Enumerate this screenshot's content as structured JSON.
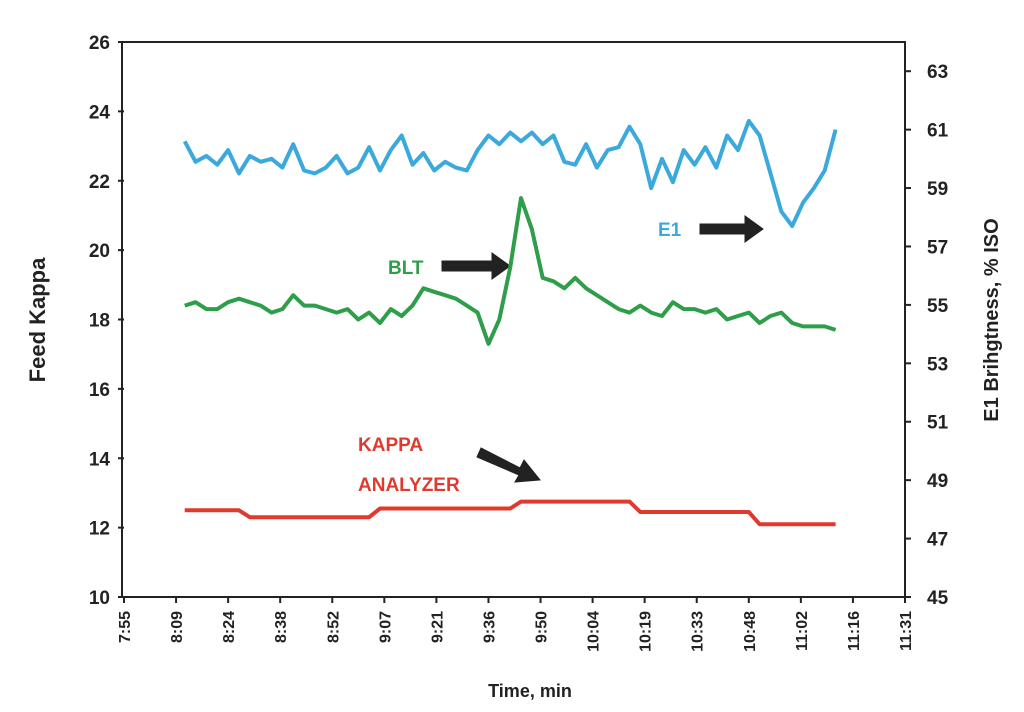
{
  "chart_data": {
    "type": "line",
    "x_label": "Time, min",
    "y_label": "Feed Kappa",
    "y2_label": "E1 Brihgtness, % ISO",
    "xlim": [
      475.2,
      691.2
    ],
    "xticks": [
      {
        "value": 475.2,
        "label": "7:55"
      },
      {
        "value": 489.6,
        "label": "8:09"
      },
      {
        "value": 504,
        "label": "8:24"
      },
      {
        "value": 518.4,
        "label": "8:38"
      },
      {
        "value": 532.8,
        "label": "8:52"
      },
      {
        "value": 547.2,
        "label": "9:07"
      },
      {
        "value": 561.6,
        "label": "9:21"
      },
      {
        "value": 576,
        "label": "9:36"
      },
      {
        "value": 590.4,
        "label": "9:50"
      },
      {
        "value": 604.8,
        "label": "10:04"
      },
      {
        "value": 619.2,
        "label": "10:19"
      },
      {
        "value": 633.6,
        "label": "10:33"
      },
      {
        "value": 648,
        "label": "10:48"
      },
      {
        "value": 662.4,
        "label": "11:02"
      },
      {
        "value": 676.8,
        "label": "11:16"
      },
      {
        "value": 691.2,
        "label": "11:31"
      }
    ],
    "ylim": [
      10,
      26
    ],
    "yticks": [
      10,
      12,
      14,
      16,
      18,
      20,
      22,
      24,
      26
    ],
    "y2lim": [
      45,
      64
    ],
    "y2ticks": [
      45,
      47,
      49,
      51,
      53,
      55,
      57,
      59,
      61,
      63
    ],
    "x": [
      492,
      495,
      498,
      501,
      504,
      507,
      510,
      513,
      516,
      519,
      522,
      525,
      528,
      531,
      534,
      537,
      540,
      543,
      546,
      549,
      552,
      555,
      558,
      561,
      564,
      567,
      570,
      573,
      576,
      579,
      582,
      585,
      588,
      591,
      594,
      597,
      600,
      603,
      606,
      609,
      612,
      615,
      618,
      621,
      624,
      627,
      630,
      633,
      636,
      639,
      642,
      645,
      648,
      651,
      654,
      657,
      660,
      663,
      666,
      669,
      672
    ],
    "series": [
      {
        "color": "#3ba9dc",
        "axis": "y2",
        "values": [
          60.6,
          59.9,
          60.1,
          59.8,
          60.3,
          59.5,
          60.1,
          59.9,
          60.0,
          59.7,
          60.5,
          59.6,
          59.5,
          59.7,
          60.1,
          59.5,
          59.7,
          60.4,
          59.6,
          60.3,
          60.8,
          59.8,
          60.2,
          59.6,
          59.9,
          59.7,
          59.6,
          60.3,
          60.8,
          60.5,
          60.9,
          60.6,
          60.9,
          60.5,
          60.8,
          59.9,
          59.8,
          60.5,
          59.7,
          60.3,
          60.4,
          61.1,
          60.5,
          59.0,
          60.0,
          59.2,
          60.3,
          59.8,
          60.4,
          59.7,
          60.8,
          60.3,
          61.3,
          60.8,
          59.5,
          58.2,
          57.7,
          58.5,
          59.0,
          59.6,
          61.0
        ]
      },
      {
        "color": "#2e9e4a",
        "values": [
          18.4,
          18.5,
          18.3,
          18.3,
          18.5,
          18.6,
          18.5,
          18.4,
          18.2,
          18.3,
          18.7,
          18.4,
          18.4,
          18.3,
          18.2,
          18.3,
          18.0,
          18.2,
          17.9,
          18.3,
          18.1,
          18.4,
          18.9,
          18.8,
          18.7,
          18.6,
          18.4,
          18.2,
          17.3,
          18.0,
          19.5,
          21.5,
          20.6,
          19.2,
          19.1,
          18.9,
          19.2,
          18.9,
          18.7,
          18.5,
          18.3,
          18.2,
          18.4,
          18.2,
          18.1,
          18.5,
          18.3,
          18.3,
          18.2,
          18.3,
          18.0,
          18.1,
          18.2,
          17.9,
          18.1,
          18.2,
          17.9,
          17.8,
          17.8,
          17.8,
          17.7
        ]
      },
      {
        "color": "#e03a2f",
        "values": [
          12.5,
          12.5,
          12.5,
          12.5,
          12.5,
          12.5,
          12.3,
          12.3,
          12.3,
          12.3,
          12.3,
          12.3,
          12.3,
          12.3,
          12.3,
          12.3,
          12.3,
          12.3,
          12.55,
          12.55,
          12.55,
          12.55,
          12.55,
          12.55,
          12.55,
          12.55,
          12.55,
          12.55,
          12.55,
          12.55,
          12.55,
          12.75,
          12.75,
          12.75,
          12.75,
          12.75,
          12.75,
          12.75,
          12.75,
          12.75,
          12.75,
          12.75,
          12.45,
          12.45,
          12.45,
          12.45,
          12.45,
          12.45,
          12.45,
          12.45,
          12.45,
          12.45,
          12.45,
          12.1,
          12.1,
          12.1,
          12.1,
          12.1,
          12.1,
          12.1,
          12.1
        ]
      }
    ],
    "annotations": [
      {
        "text": "BLT",
        "color": "#2e9e4a"
      },
      {
        "text": "E1",
        "color": "#3ba9dc"
      },
      {
        "text": "KAPPA",
        "color": "#e03a2f"
      },
      {
        "text": "ANALYZER",
        "color": "#e03a2f"
      }
    ]
  }
}
